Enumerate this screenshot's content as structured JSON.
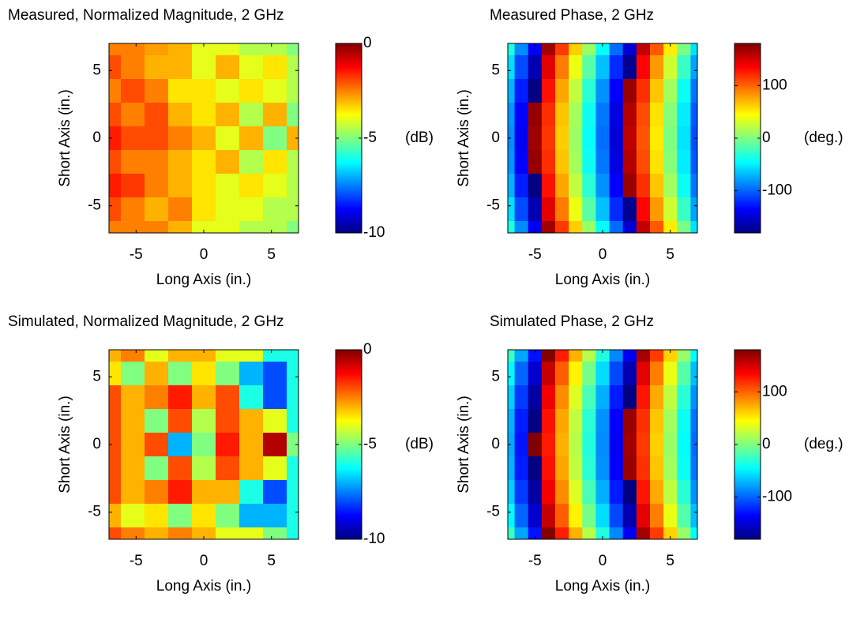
{
  "chart_data": [
    {
      "type": "heatmap",
      "title": "Measured, Normalized Magnitude, 2 GHz",
      "xlabel": "Long Axis (in.)",
      "ylabel": "Short Axis (in.)",
      "x": [
        -7,
        -5.25,
        -3.5,
        -1.75,
        0,
        1.75,
        3.5,
        5.25,
        7
      ],
      "y": [
        7,
        5.25,
        3.5,
        1.75,
        0,
        -1.75,
        -3.5,
        -5.25,
        -7
      ],
      "z": [
        [
          -2.5,
          -2.5,
          -2.8,
          -3,
          -4,
          -4,
          -4.5,
          -4.5,
          -5
        ],
        [
          -2,
          -2.5,
          -3,
          -3,
          -4,
          -3,
          -4,
          -3.5,
          -4.5
        ],
        [
          -2.5,
          -2,
          -2.5,
          -3.5,
          -3.5,
          -4,
          -3.5,
          -4,
          -4.5
        ],
        [
          -2,
          -2.5,
          -2,
          -3,
          -3.5,
          -3,
          -4.5,
          -3,
          -5
        ],
        [
          -1.5,
          -2,
          -2,
          -2.5,
          -3,
          -4,
          -3,
          -5,
          -3
        ],
        [
          -2,
          -2.5,
          -2.5,
          -3,
          -3.5,
          -3,
          -4.5,
          -3.5,
          -4.5
        ],
        [
          -1.5,
          -1.8,
          -2.5,
          -3,
          -3.5,
          -4,
          -3.5,
          -4,
          -4.5
        ],
        [
          -2,
          -2.5,
          -3,
          -2.5,
          -3.5,
          -4,
          -4,
          -4.5,
          -4.5
        ],
        [
          -2.5,
          -2.5,
          -2.5,
          -3,
          -4,
          -4,
          -4.5,
          -4.5,
          -5
        ]
      ],
      "xlim": [
        -7,
        7
      ],
      "ylim": [
        -7,
        7
      ],
      "xticks": [
        -5,
        0,
        5
      ],
      "yticks": [
        -5,
        0,
        5
      ],
      "colormap": "jet",
      "clim": [
        -10,
        0
      ],
      "cticks": [
        -10,
        -5,
        0
      ],
      "colorbar_label": "(dB)"
    },
    {
      "type": "heatmap",
      "title": "Measured Phase, 2 GHz",
      "xlabel": "Long Axis (in.)",
      "ylabel": "Short Axis (in.)",
      "x": [
        -7,
        -6,
        -5,
        -4,
        -3,
        -2,
        -1,
        0,
        1,
        2,
        3,
        4,
        5,
        6,
        7
      ],
      "y": [
        7,
        5.25,
        3.5,
        1.75,
        0,
        -1.75,
        -3.5,
        -5.25,
        -7
      ],
      "z": [
        [
          -33,
          -86,
          -139,
          168,
          115,
          62,
          9,
          -44,
          -97,
          -150,
          157,
          104,
          51,
          -2,
          -55
        ],
        [
          -56,
          -109,
          -162,
          145,
          92,
          39,
          -14,
          -67,
          -120,
          -173,
          134,
          81,
          28,
          -25,
          -78
        ],
        [
          -72,
          -125,
          -178,
          129,
          76,
          23,
          -30,
          -83,
          -136,
          171,
          118,
          65,
          12,
          -41,
          -94
        ],
        [
          -82,
          -135,
          172,
          119,
          66,
          13,
          -40,
          -93,
          -146,
          161,
          108,
          55,
          2,
          -51,
          -104
        ],
        [
          -85,
          -138,
          169,
          116,
          63,
          10,
          -43,
          -96,
          -149,
          158,
          105,
          52,
          -1,
          -54,
          -107
        ],
        [
          -82,
          -135,
          172,
          119,
          66,
          13,
          -40,
          -93,
          -146,
          161,
          108,
          55,
          2,
          -51,
          -104
        ],
        [
          -72,
          -125,
          -178,
          129,
          76,
          23,
          -30,
          -83,
          -136,
          171,
          118,
          65,
          12,
          -41,
          -94
        ],
        [
          -56,
          -109,
          -162,
          145,
          92,
          39,
          -14,
          -67,
          -120,
          -173,
          134,
          81,
          28,
          -25,
          -78
        ],
        [
          -33,
          -86,
          -139,
          168,
          115,
          62,
          9,
          -44,
          -97,
          -150,
          157,
          104,
          51,
          -2,
          -55
        ]
      ],
      "xlim": [
        -7,
        7
      ],
      "ylim": [
        -7,
        7
      ],
      "xticks": [
        -5,
        0,
        5
      ],
      "yticks": [
        -5,
        0,
        5
      ],
      "colormap": "jet",
      "clim": [
        -180,
        180
      ],
      "cticks": [
        -100,
        0,
        100
      ],
      "colorbar_label": "(deg.)"
    },
    {
      "type": "heatmap",
      "title": "Simulated, Normalized Magnitude, 2 GHz",
      "xlabel": "Long Axis (in.)",
      "ylabel": "Short Axis (in.)",
      "x": [
        -7,
        -5.25,
        -3.5,
        -1.75,
        0,
        1.75,
        3.5,
        5.25,
        7
      ],
      "y": [
        7,
        5.25,
        3.5,
        1.75,
        0,
        -1.75,
        -3.5,
        -5.25,
        -7
      ],
      "z": [
        [
          -3,
          -2.5,
          -4,
          -3,
          -3,
          -4,
          -4,
          -6,
          -6
        ],
        [
          -3.5,
          -5,
          -3,
          -5,
          -3.5,
          -5,
          -7,
          -8,
          -6
        ],
        [
          -2,
          -3,
          -2.5,
          -1.5,
          -3,
          -2,
          -6,
          -8,
          -6
        ],
        [
          -2,
          -3,
          -5,
          -2,
          -4.5,
          -2,
          -3,
          -4,
          -6
        ],
        [
          -2,
          -3,
          -2,
          -7,
          -5,
          -1.5,
          -3,
          -0.5,
          -5
        ],
        [
          -2,
          -3,
          -5,
          -2,
          -4.5,
          -2,
          -3,
          -4,
          -6
        ],
        [
          -2,
          -3,
          -2.5,
          -1.5,
          -3,
          -3,
          -6,
          -8,
          -6
        ],
        [
          -3,
          -4,
          -3.5,
          -5,
          -3.5,
          -5,
          -7,
          -7,
          -6
        ],
        [
          -2,
          -2.5,
          -3,
          -2.5,
          -3,
          -4,
          -4,
          -5,
          -6
        ]
      ],
      "xlim": [
        -7,
        7
      ],
      "ylim": [
        -7,
        7
      ],
      "xticks": [
        -5,
        0,
        5
      ],
      "yticks": [
        -5,
        0,
        5
      ],
      "colormap": "jet",
      "clim": [
        -10,
        0
      ],
      "cticks": [
        -10,
        -5,
        0
      ],
      "colorbar_label": "(dB)"
    },
    {
      "type": "heatmap",
      "title": "Simulated Phase, 2 GHz",
      "xlabel": "Long Axis (in.)",
      "ylabel": "Short Axis (in.)",
      "x": [
        -7,
        -6,
        -5,
        -4,
        -3,
        -2,
        -1,
        0,
        1,
        2,
        3,
        4,
        5,
        6,
        7
      ],
      "y": [
        7,
        5.25,
        3.5,
        1.75,
        0,
        -1.75,
        -3.5,
        -5.25,
        -7
      ],
      "z": [
        [
          -23,
          -76,
          -129,
          178,
          125,
          72,
          19,
          -34,
          -87,
          -140,
          167,
          114,
          61,
          8,
          -45
        ],
        [
          -46,
          -99,
          -152,
          155,
          102,
          49,
          -4,
          -57,
          -110,
          -163,
          144,
          91,
          38,
          -15,
          -68
        ],
        [
          -62,
          -115,
          -168,
          139,
          86,
          33,
          -20,
          -73,
          -126,
          -179,
          128,
          75,
          22,
          -31,
          -84
        ],
        [
          -72,
          -125,
          -178,
          129,
          76,
          23,
          -30,
          -83,
          -136,
          171,
          118,
          65,
          12,
          -41,
          -94
        ],
        [
          -75,
          -128,
          179,
          126,
          73,
          20,
          -33,
          -86,
          -139,
          168,
          115,
          62,
          9,
          -44,
          -97
        ],
        [
          -72,
          -125,
          -178,
          129,
          76,
          23,
          -30,
          -83,
          -136,
          171,
          118,
          65,
          12,
          -41,
          -94
        ],
        [
          -62,
          -115,
          -168,
          139,
          86,
          33,
          -20,
          -73,
          -126,
          -179,
          128,
          75,
          22,
          -31,
          -84
        ],
        [
          -46,
          -99,
          -152,
          155,
          102,
          49,
          -4,
          -57,
          -110,
          -163,
          144,
          91,
          38,
          -15,
          -68
        ],
        [
          -23,
          -76,
          -129,
          178,
          125,
          72,
          19,
          -34,
          -87,
          -140,
          167,
          114,
          61,
          8,
          -45
        ]
      ],
      "xlim": [
        -7,
        7
      ],
      "ylim": [
        -7,
        7
      ],
      "xticks": [
        -5,
        0,
        5
      ],
      "yticks": [
        -5,
        0,
        5
      ],
      "colormap": "jet",
      "clim": [
        -180,
        180
      ],
      "cticks": [
        -100,
        0,
        100
      ],
      "colorbar_label": "(deg.)"
    }
  ]
}
